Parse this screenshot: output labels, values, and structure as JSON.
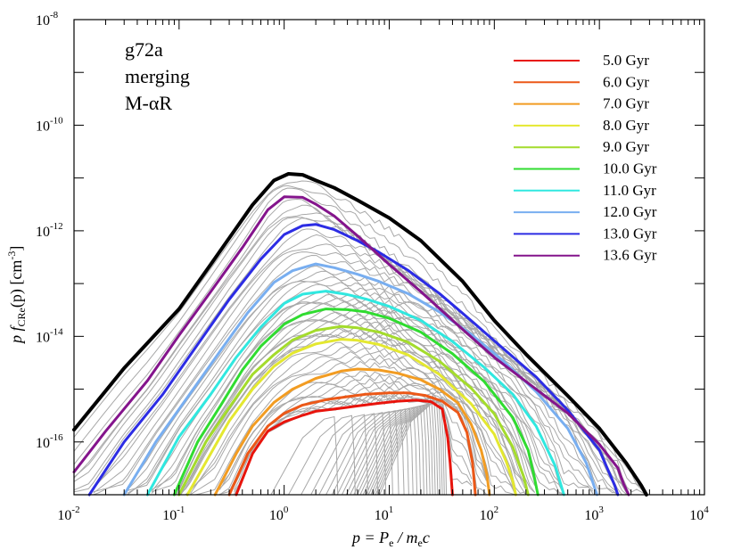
{
  "info": {
    "lines": [
      "g72a",
      "merging",
      "M-αR"
    ]
  },
  "chart_data": {
    "type": "line",
    "title": "",
    "xlabel": {
      "main": "p = P",
      "sub1": "e",
      "mid": " / m",
      "sub2": "e",
      "end": "c"
    },
    "ylabel": {
      "main": "p f",
      "sub": "CRe",
      "mid": "(p) [cm",
      "sup": "-3",
      "end": "]"
    },
    "x_scale": "log",
    "y_scale": "log",
    "xlim": [
      0.01,
      10000
    ],
    "ylim": [
      1e-17,
      1e-08
    ],
    "x_ticks": [
      {
        "value": 0.01,
        "base": "10",
        "exp": "-2"
      },
      {
        "value": 0.1,
        "base": "10",
        "exp": "-1"
      },
      {
        "value": 1,
        "base": "10",
        "exp": "0"
      },
      {
        "value": 10,
        "base": "10",
        "exp": "1"
      },
      {
        "value": 100,
        "base": "10",
        "exp": "2"
      },
      {
        "value": 1000,
        "base": "10",
        "exp": "3"
      },
      {
        "value": 10000,
        "base": "10",
        "exp": "4"
      }
    ],
    "y_ticks": [
      {
        "value": 1e-16,
        "base": "10",
        "exp": "-16"
      },
      {
        "value": 1e-14,
        "base": "10",
        "exp": "-14"
      },
      {
        "value": 1e-12,
        "base": "10",
        "exp": "-12"
      },
      {
        "value": 1e-10,
        "base": "10",
        "exp": "-10"
      },
      {
        "value": 1e-08,
        "base": "10",
        "exp": "-8"
      }
    ],
    "legend_position": "top-right",
    "series": [
      {
        "name": "5.0 Gyr",
        "color": "#e8140c",
        "x": [
          0.35,
          0.5,
          0.7,
          1,
          1.5,
          2,
          3,
          5,
          8,
          12,
          18,
          25,
          32,
          36,
          38,
          40
        ],
        "y": [
          1e-17,
          6e-17,
          1.6e-16,
          2.4e-16,
          3.2e-16,
          3.8e-16,
          4.2e-16,
          4.8e-16,
          5.4e-16,
          5.9e-16,
          6.2e-16,
          5.8e-16,
          4.2e-16,
          1.2e-16,
          4e-17,
          1e-17
        ]
      },
      {
        "name": "6.0 Gyr",
        "color": "#ec5818",
        "x": [
          0.3,
          0.45,
          0.7,
          1,
          1.5,
          2.5,
          4,
          6,
          10,
          15,
          22,
          32,
          45,
          55,
          62,
          66
        ],
        "y": [
          1e-17,
          6e-17,
          2e-16,
          3.5e-16,
          5e-16,
          6.3e-16,
          7.2e-16,
          8e-16,
          8.5e-16,
          8.5e-16,
          7.6e-16,
          5.9e-16,
          3.6e-16,
          1.5e-16,
          4e-17,
          1e-17
        ]
      },
      {
        "name": "7.0 Gyr",
        "color": "#f29c22",
        "x": [
          0.22,
          0.35,
          0.5,
          0.8,
          1.2,
          2,
          3.5,
          5,
          8,
          12,
          20,
          30,
          45,
          60,
          75,
          85,
          90
        ],
        "y": [
          1e-17,
          6e-17,
          2e-16,
          5.6e-16,
          1e-15,
          1.6e-15,
          2.2e-15,
          2.4e-15,
          2.3e-15,
          2e-15,
          1.5e-15,
          1e-15,
          5.5e-16,
          2.2e-16,
          7e-17,
          2.4e-17,
          1e-17
        ]
      },
      {
        "name": "8.0 Gyr",
        "color": "#e4e830",
        "x": [
          0.12,
          0.2,
          0.3,
          0.5,
          0.8,
          1.2,
          2,
          3.5,
          5,
          8,
          15,
          30,
          60,
          100,
          130,
          150,
          160
        ],
        "y": [
          1e-17,
          6e-17,
          2.5e-16,
          1e-15,
          2.7e-15,
          4.8e-15,
          7.2e-15,
          8.8e-15,
          8.4e-15,
          7e-15,
          4.5e-15,
          1.9e-15,
          5.3e-16,
          1.4e-16,
          4.2e-17,
          1.8e-17,
          1e-17
        ]
      },
      {
        "name": "9.0 Gyr",
        "color": "#a4dc2c",
        "x": [
          0.1,
          0.18,
          0.3,
          0.5,
          0.8,
          1.2,
          2,
          3.5,
          5,
          8,
          15,
          30,
          60,
          100,
          150,
          190,
          210
        ],
        "y": [
          1e-17,
          1e-16,
          4.5e-16,
          1.9e-15,
          4.5e-15,
          8.5e-15,
          1.3e-14,
          1.55e-14,
          1.45e-14,
          1.2e-14,
          7.8e-15,
          3.4e-15,
          1.05e-15,
          3.4e-16,
          8e-17,
          2.2e-17,
          1e-17
        ]
      },
      {
        "name": "10.0 Gyr",
        "color": "#30dc30",
        "x": [
          0.09,
          0.15,
          0.25,
          0.4,
          0.6,
          1,
          1.5,
          2.5,
          4,
          6,
          10,
          20,
          40,
          80,
          150,
          210,
          240,
          260
        ],
        "y": [
          1e-17,
          1e-16,
          5e-16,
          2.3e-15,
          6.5e-15,
          1.7e-14,
          2.6e-14,
          3.3e-14,
          3.2e-14,
          2.9e-14,
          2.2e-14,
          1.2e-14,
          4.7e-15,
          1.4e-15,
          2.9e-16,
          7e-17,
          2.2e-17,
          1e-17
        ]
      },
      {
        "name": "11.0 Gyr",
        "color": "#30e8e0",
        "x": [
          0.05,
          0.1,
          0.2,
          0.35,
          0.6,
          1,
          1.5,
          2.5,
          4,
          6,
          10,
          20,
          40,
          80,
          150,
          250,
          380,
          460
        ],
        "y": [
          1e-17,
          1.25e-16,
          8e-16,
          4e-15,
          1.5e-14,
          4.2e-14,
          6.3e-14,
          7.2e-14,
          6.2e-14,
          5.1e-14,
          3.7e-14,
          2e-14,
          8e-15,
          2.6e-15,
          8e-16,
          2e-16,
          3.5e-17,
          1e-17
        ]
      },
      {
        "name": "12.0 Gyr",
        "color": "#78aef0",
        "x": [
          0.03,
          0.06,
          0.12,
          0.25,
          0.45,
          0.8,
          1.2,
          2,
          3,
          5,
          8,
          15,
          30,
          60,
          120,
          250,
          500,
          750,
          950
        ],
        "y": [
          1e-17,
          1e-16,
          7e-16,
          5.5e-15,
          2.8e-14,
          1.05e-13,
          1.75e-13,
          2.35e-13,
          2e-13,
          1.5e-13,
          1.1e-13,
          6.5e-14,
          2.9e-14,
          1.1e-14,
          3.5e-15,
          9e-16,
          1.8e-16,
          4e-17,
          1e-17
        ]
      },
      {
        "name": "13.0 Gyr",
        "color": "#2c2ce4",
        "x": [
          0.014,
          0.03,
          0.07,
          0.15,
          0.3,
          0.6,
          1,
          1.5,
          2,
          3,
          5,
          8,
          15,
          30,
          60,
          120,
          250,
          500,
          1000,
          1400,
          1500
        ],
        "y": [
          1e-17,
          1e-16,
          8e-16,
          7e-15,
          5e-14,
          2.9e-13,
          8.5e-13,
          1.25e-12,
          1.32e-12,
          1.05e-12,
          6.5e-13,
          3.9e-13,
          1.8e-13,
          6.5e-14,
          2e-14,
          6e-15,
          1.7e-15,
          4e-16,
          7e-17,
          1.5e-17,
          1e-17
        ]
      },
      {
        "name": "13.6 Gyr",
        "color": "#84148c",
        "x": [
          0.01,
          0.02,
          0.05,
          0.1,
          0.2,
          0.4,
          0.7,
          1,
          1.5,
          2,
          3,
          5,
          10,
          20,
          50,
          100,
          200,
          500,
          1000,
          1500,
          1700,
          1900
        ],
        "y": [
          2.7e-17,
          1.6e-16,
          1.45e-15,
          1.05e-14,
          7e-14,
          4.8e-13,
          2.5e-12,
          4.4e-12,
          4.3e-12,
          3.2e-12,
          1.9e-12,
          8e-13,
          2.3e-13,
          7e-14,
          1.35e-14,
          4e-15,
          1.4e-15,
          3.5e-16,
          9e-17,
          3.2e-17,
          1.6e-17,
          1e-17
        ]
      },
      {
        "x": [
          0.01,
          0.03,
          0.1,
          0.2,
          0.5,
          0.8,
          1.1,
          1.5,
          2,
          3,
          5,
          10,
          20,
          50,
          100,
          200,
          500,
          1000,
          1800,
          2500,
          2800
        ],
        "y": [
          1.7e-16,
          2.5e-15,
          3.3e-14,
          2.3e-13,
          3.1e-12,
          9e-12,
          1.2e-11,
          1.15e-11,
          9e-12,
          6.5e-12,
          3.8e-12,
          1.75e-12,
          6.5e-13,
          1.1e-13,
          2e-14,
          4.6e-15,
          7.5e-16,
          1.8e-16,
          4e-17,
          1.5e-17,
          1e-17
        ],
        "color": "#000000"
      }
    ]
  }
}
